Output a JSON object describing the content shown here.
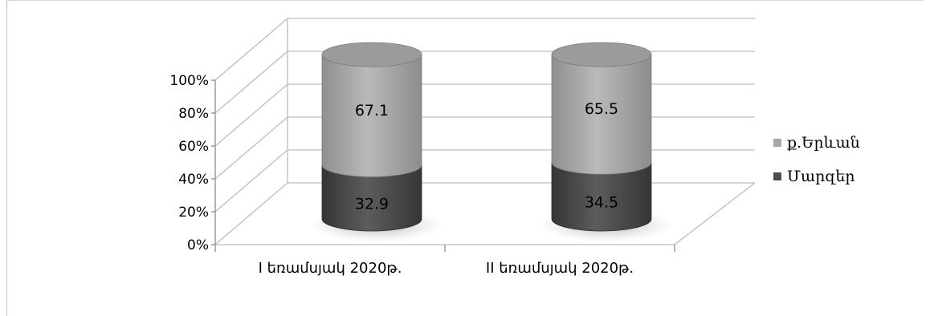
{
  "chart_data": {
    "type": "bar",
    "stacked": true,
    "percent_stacked": true,
    "three_d": true,
    "bar_shape": "cylinder",
    "categories": [
      "I եռամսյակ 2020թ.",
      "II եռամսյակ 2020թ."
    ],
    "series": [
      {
        "name": "Մարզեր",
        "values": [
          32.9,
          34.5
        ],
        "color": "#4d4d4d"
      },
      {
        "name": "ք.Երևան",
        "values": [
          67.1,
          65.5
        ],
        "color": "#a6a6a6"
      }
    ],
    "y_ticks": [
      "0%",
      "20%",
      "40%",
      "60%",
      "80%",
      "100%"
    ],
    "ylim": [
      0,
      100
    ],
    "grid": true,
    "legend_position": "right"
  }
}
